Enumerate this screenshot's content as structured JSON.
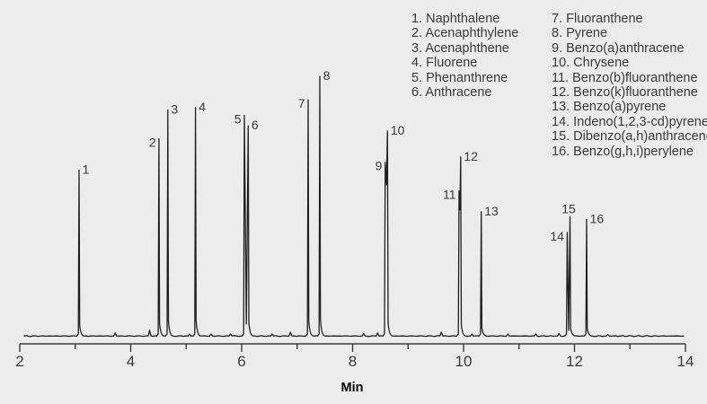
{
  "figure": {
    "colors": {
      "background": "#ececec",
      "trace": "#1f1f1f",
      "axis": "#3b3b3b",
      "text": "#3a3a3a"
    }
  },
  "chart_data": {
    "type": "line",
    "title": "",
    "xlabel": "Min",
    "ylabel": "",
    "x_range": [
      2,
      14
    ],
    "x_major_ticks": [
      2,
      4,
      6,
      8,
      10,
      12,
      14
    ],
    "x_minor_ticks": [
      3,
      5,
      7,
      9,
      11,
      13
    ],
    "y_axis_shown": false,
    "grid": false,
    "legend_position": "top-right",
    "peaks": [
      {
        "num": 1,
        "name": "Naphthalene",
        "legend_label": "1. Naphthalene",
        "rt_min": 3.07,
        "rel_intensity": 64,
        "label_side": "right"
      },
      {
        "num": 2,
        "name": "Acenaphthylene",
        "legend_label": "2. Acenaphthylene",
        "rt_min": 4.51,
        "rel_intensity": 76,
        "label_side": "left"
      },
      {
        "num": 3,
        "name": "Acenaphthene",
        "legend_label": "3. Acenaphthene",
        "rt_min": 4.67,
        "rel_intensity": 87,
        "label_side": "right"
      },
      {
        "num": 4,
        "name": "Fluorene",
        "legend_label": "4. Fluorene",
        "rt_min": 5.17,
        "rel_intensity": 88,
        "label_side": "right"
      },
      {
        "num": 5,
        "name": "Phenanthrene",
        "legend_label": "5. Phenanthrene",
        "rt_min": 6.05,
        "rel_intensity": 85,
        "label_side": "left"
      },
      {
        "num": 6,
        "name": "Anthracene",
        "legend_label": "6. Anthracene",
        "rt_min": 6.12,
        "rel_intensity": 81,
        "label_side": "right"
      },
      {
        "num": 7,
        "name": "Fluoranthene",
        "legend_label": "7. Fluoranthene",
        "rt_min": 7.2,
        "rel_intensity": 91,
        "label_side": "left"
      },
      {
        "num": 8,
        "name": "Pyrene",
        "legend_label": "8. Pyrene",
        "rt_min": 7.41,
        "rel_intensity": 100,
        "label_side": "right"
      },
      {
        "num": 9,
        "name": "Benzo(a)anthracene",
        "legend_label": "9. Benzo(a)anthracene",
        "rt_min": 8.59,
        "rel_intensity": 67,
        "label_side": "left"
      },
      {
        "num": 10,
        "name": "Chrysene",
        "legend_label": "10. Chrysene",
        "rt_min": 8.63,
        "rel_intensity": 79,
        "label_side": "right"
      },
      {
        "num": 11,
        "name": "Benzo(b)fluoranthene",
        "legend_label": "11. Benzo(b)fluoranthene",
        "rt_min": 9.92,
        "rel_intensity": 56,
        "label_side": "left"
      },
      {
        "num": 12,
        "name": "Benzo(k)fluoranthene",
        "legend_label": "12. Benzo(k)fluoranthene",
        "rt_min": 9.95,
        "rel_intensity": 69,
        "label_side": "right"
      },
      {
        "num": 13,
        "name": "Benzo(a)pyrene",
        "legend_label": "13. Benzo(a)pyrene",
        "rt_min": 10.32,
        "rel_intensity": 48,
        "label_side": "right"
      },
      {
        "num": 14,
        "name": "Indeno(1,2,3-cd)pyrene",
        "legend_label": "14. Indeno(1,2,3-cd)pyrene",
        "rt_min": 11.87,
        "rel_intensity": 40,
        "label_side": "left"
      },
      {
        "num": 15,
        "name": "Dibenzo(a,h)anthracene",
        "legend_label": "15. Dibenzo(a,h)anthracene",
        "rt_min": 11.92,
        "rel_intensity": 46,
        "label_side": "above"
      },
      {
        "num": 16,
        "name": "Benzo(g,h,i)perylene",
        "legend_label": "16. Benzo(g,h,i)perylene",
        "rt_min": 12.22,
        "rel_intensity": 45,
        "label_side": "right"
      }
    ],
    "baseline_blips": [
      {
        "rt_min": 3.72,
        "rel_intensity": 1.4
      },
      {
        "rt_min": 4.34,
        "rel_intensity": 2.4
      },
      {
        "rt_min": 5.06,
        "rel_intensity": 1.0
      },
      {
        "rt_min": 5.45,
        "rel_intensity": 1.0
      },
      {
        "rt_min": 5.8,
        "rel_intensity": 1.0
      },
      {
        "rt_min": 6.55,
        "rel_intensity": 1.0
      },
      {
        "rt_min": 6.88,
        "rel_intensity": 1.7
      },
      {
        "rt_min": 8.2,
        "rel_intensity": 1.2
      },
      {
        "rt_min": 8.45,
        "rel_intensity": 1.4
      },
      {
        "rt_min": 9.6,
        "rel_intensity": 1.7
      },
      {
        "rt_min": 10.15,
        "rel_intensity": 1.0
      },
      {
        "rt_min": 10.8,
        "rel_intensity": 1.0
      },
      {
        "rt_min": 11.3,
        "rel_intensity": 1.0
      },
      {
        "rt_min": 11.72,
        "rel_intensity": 1.2
      },
      {
        "rt_min": 12.6,
        "rel_intensity": 0.8
      }
    ]
  }
}
